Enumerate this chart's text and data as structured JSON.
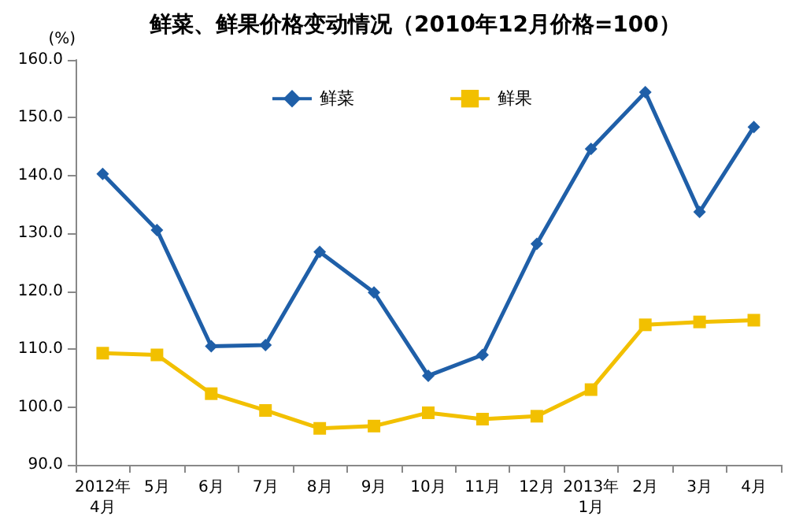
{
  "chart_data": {
    "type": "line",
    "title": "鲜菜、鲜果价格变动情况（2010年12月价格=100）",
    "ylabel": "(%)",
    "categories": [
      "2012年\n4月",
      "5月",
      "6月",
      "7月",
      "8月",
      "9月",
      "10月",
      "11月",
      "12月",
      "2013年\n1月",
      "2月",
      "3月",
      "4月"
    ],
    "series": [
      {
        "name": "鲜菜",
        "color": "#1f5fa8",
        "marker": "diamond",
        "values": [
          140.3,
          130.6,
          110.5,
          110.7,
          126.8,
          119.8,
          105.4,
          109.0,
          128.2,
          144.6,
          154.4,
          133.7,
          148.4
        ]
      },
      {
        "name": "鲜果",
        "color": "#f2c000",
        "marker": "square",
        "values": [
          109.3,
          109.0,
          102.3,
          99.4,
          96.3,
          96.7,
          99.0,
          97.9,
          98.4,
          103.0,
          114.2,
          114.7,
          115.0
        ]
      }
    ],
    "ylim": [
      90,
      160
    ],
    "yticks": [
      {
        "value": 90,
        "label": "90.0"
      },
      {
        "value": 100,
        "label": "100.0"
      },
      {
        "value": 110,
        "label": "110.0"
      },
      {
        "value": 120,
        "label": "120.0"
      },
      {
        "value": 130,
        "label": "130.0"
      },
      {
        "value": 140,
        "label": "140.0"
      },
      {
        "value": 150,
        "label": "150.0"
      },
      {
        "value": 160,
        "label": "160.0"
      }
    ],
    "grid": false,
    "legend": "top",
    "line_style": "solid"
  }
}
